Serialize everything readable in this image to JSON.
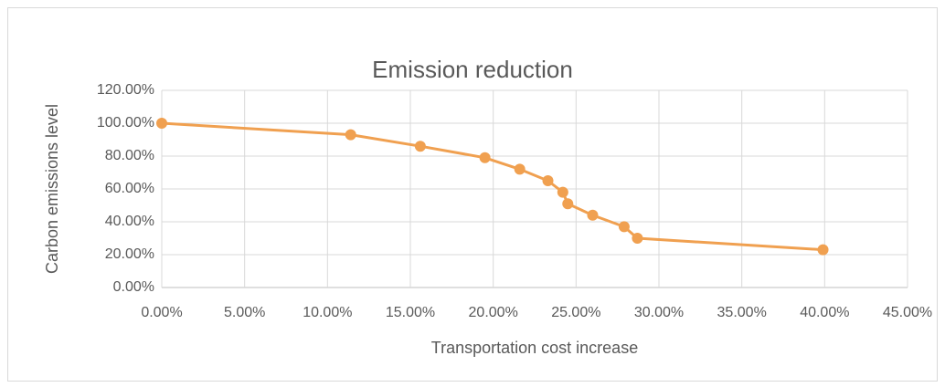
{
  "chart_data": {
    "type": "scatter-line",
    "title": "Emission reduction",
    "x_label": "Transportation cost increase",
    "y_label": "Carbon emissions level",
    "x": [
      0,
      11.4,
      15.6,
      19.5,
      21.6,
      23.3,
      24.2,
      24.5,
      26.0,
      27.9,
      28.7,
      39.9
    ],
    "values": [
      100,
      93,
      86,
      79,
      72,
      65,
      58,
      51,
      44,
      37,
      30,
      23
    ],
    "color": "#f0a050",
    "xlim": [
      0,
      45
    ],
    "xticks": [
      {
        "value": 0,
        "label": "0.00%"
      },
      {
        "value": 5,
        "label": "5.00%"
      },
      {
        "value": 10,
        "label": "10.00%"
      },
      {
        "value": 15,
        "label": "15.00%"
      },
      {
        "value": 20,
        "label": "20.00%"
      },
      {
        "value": 25,
        "label": "25.00%"
      },
      {
        "value": 30,
        "label": "30.00%"
      },
      {
        "value": 35,
        "label": "35.00%"
      },
      {
        "value": 40,
        "label": "40.00%"
      },
      {
        "value": 45,
        "label": "45.00%"
      }
    ],
    "ylim": [
      0,
      120
    ],
    "yticks": [
      {
        "value": 0,
        "label": "0.00%"
      },
      {
        "value": 20,
        "label": "20.00%"
      },
      {
        "value": 40,
        "label": "40.00%"
      },
      {
        "value": 60,
        "label": "60.00%"
      },
      {
        "value": 80,
        "label": "80.00%"
      },
      {
        "value": 100,
        "label": "100.00%"
      },
      {
        "value": 120,
        "label": "120.00%"
      }
    ],
    "grid": true
  }
}
